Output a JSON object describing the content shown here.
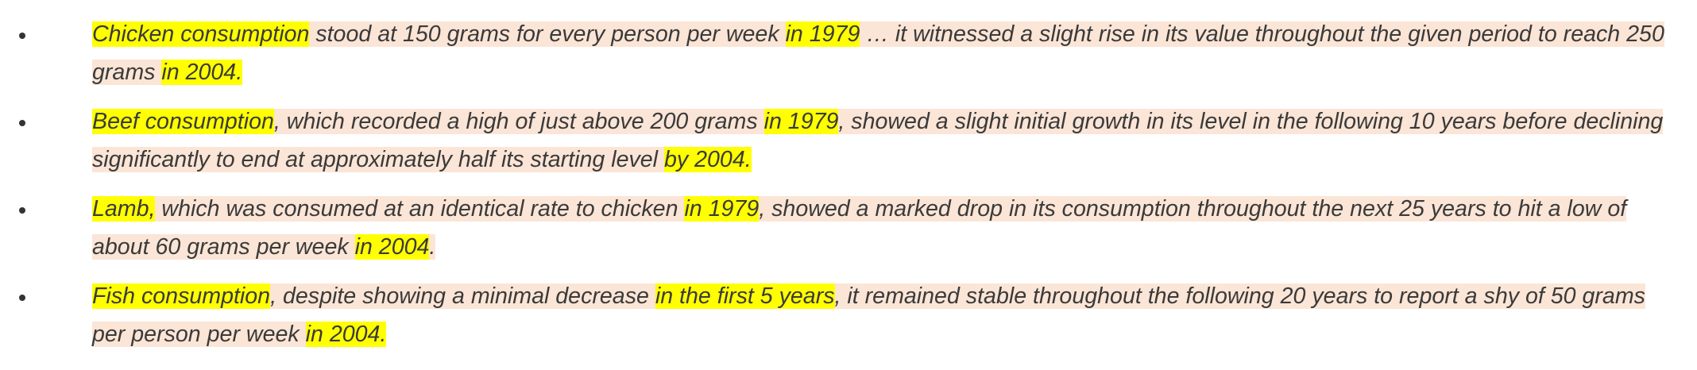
{
  "bullets": [
    {
      "segments": [
        {
          "text": "Chicken consumption",
          "hl": true
        },
        {
          "text": " stood at 150 grams for every person per week ",
          "hl": false
        },
        {
          "text": "in 1979",
          "hl": true
        },
        {
          "text": " … it witnessed a slight rise in its value throughout the given period to reach 250 grams ",
          "hl": false
        },
        {
          "text": "in 2004.",
          "hl": true
        }
      ]
    },
    {
      "segments": [
        {
          "text": "Beef consumption",
          "hl": true
        },
        {
          "text": ", which recorded a high of just above 200 grams ",
          "hl": false
        },
        {
          "text": "in 1979",
          "hl": true
        },
        {
          "text": ", showed a slight initial growth in its level in the following 10 years before declining significantly to end at approximately half its starting level ",
          "hl": false
        },
        {
          "text": "by 2004.",
          "hl": true
        }
      ]
    },
    {
      "segments": [
        {
          "text": "Lamb,",
          "hl": true
        },
        {
          "text": " which was consumed at an identical rate to chicken ",
          "hl": false
        },
        {
          "text": "in 1979",
          "hl": true
        },
        {
          "text": ", showed a marked drop in its consumption throughout the next 25 years to hit a low of about 60 grams per week ",
          "hl": false
        },
        {
          "text": "in 2004",
          "hl": true
        },
        {
          "text": ".",
          "hl": false
        }
      ]
    },
    {
      "segments": [
        {
          "text": "Fish consumption",
          "hl": true
        },
        {
          "text": ", despite showing a minimal decrease ",
          "hl": false
        },
        {
          "text": "in the first 5 years",
          "hl": true
        },
        {
          "text": ", it remained stable throughout the following 20 years to report a shy of 50 grams per person per week ",
          "hl": false
        },
        {
          "text": "in 2004.",
          "hl": true
        }
      ]
    }
  ]
}
